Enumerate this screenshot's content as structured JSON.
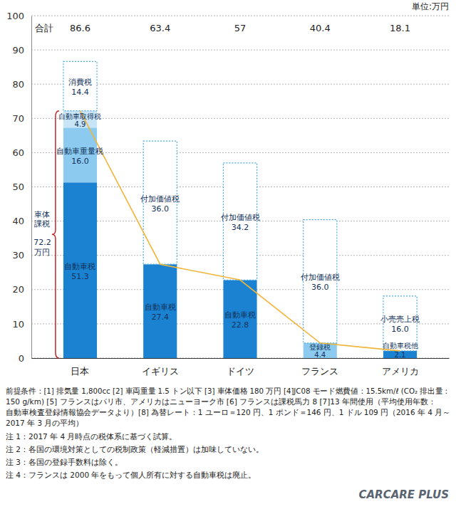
{
  "chart_data": {
    "type": "bar",
    "stacked": true,
    "data_labels": true,
    "grid": true,
    "categories": [
      "日本",
      "イギリス",
      "ドイツ",
      "フランス",
      "アメリカ"
    ],
    "ylim": [
      0,
      100
    ],
    "yticks": [
      0,
      10,
      20,
      30,
      40,
      50,
      60,
      70,
      80,
      90,
      100
    ],
    "series": [
      {
        "name": "自動車税",
        "color": "#1b82d2",
        "values": [
          51.3,
          27.4,
          22.8,
          null,
          null
        ],
        "value_labels": [
          "51.3",
          "27.4",
          "22.8",
          null,
          null
        ]
      },
      {
        "name": "登録税",
        "color": "#8ccbef",
        "values": [
          null,
          null,
          null,
          4.4,
          null
        ],
        "value_labels": [
          null,
          null,
          null,
          "4.4",
          null
        ]
      },
      {
        "name": "自動車税他",
        "color": "#1b82d2",
        "values": [
          null,
          null,
          null,
          null,
          2.1
        ],
        "value_labels": [
          null,
          null,
          null,
          null,
          "2.1"
        ]
      },
      {
        "name": "自動車重量税",
        "color": "#8ccbef",
        "values": [
          16.0,
          null,
          null,
          null,
          null
        ],
        "value_labels": [
          "16.0",
          null,
          null,
          null,
          null
        ]
      },
      {
        "name": "自動車取得税",
        "color": "#c8e5f8",
        "values": [
          4.9,
          null,
          null,
          null,
          null
        ],
        "value_labels": [
          "4.9",
          null,
          null,
          null,
          null
        ]
      },
      {
        "name": "消費税",
        "color": "#4aa8e0",
        "line_style": "dotted",
        "values": [
          14.4,
          null,
          null,
          null,
          null
        ],
        "value_labels": [
          "14.4",
          null,
          null,
          null,
          null
        ]
      },
      {
        "name": "付加価値税",
        "color": "#4aa8e0",
        "line_style": "dotted",
        "values": [
          null,
          36.0,
          34.2,
          36.0,
          null
        ],
        "value_labels": [
          null,
          "36.0",
          "34.2",
          "36.0",
          null
        ]
      },
      {
        "name": "小売売上税",
        "color": "#4aa8e0",
        "line_style": "dotted",
        "values": [
          null,
          null,
          null,
          null,
          16.0
        ],
        "value_labels": [
          null,
          null,
          null,
          null,
          "16.0"
        ]
      },
      {
        "name": "車体課税",
        "type": "line",
        "color": "#f2b53a",
        "values": [
          72.2,
          27.4,
          22.8,
          4.4,
          2.1
        ]
      }
    ],
    "totals_label": "合計",
    "totals": [
      86.6,
      63.4,
      57,
      40.4,
      18.1
    ],
    "annotations": {
      "unit": "単位:万円",
      "bracket_unit": "万円",
      "logo": "CARCARE PLUS"
    },
    "notes": [
      "前提条件：[1] 排気量 1,800cc [2] 車両重量 1.5 トン以下 [3] 車体価格 180 万円 [4]JC08 モード燃費値：15.5km/ℓ (CO₂ 排出量：",
      "150 g/km) [5] フランスはパリ市、アメリカはニューヨーク市 [6] フランスは課税馬力 8 [7]13 年間使用（平均使用年数：",
      "自動車検査登録情報協会データより）[8] 為替レート：1 ユーロ＝120 円、1 ポンド＝146 円、1 ドル 109 円（2016 年 4 月～",
      "2017 年 3 月の平均）",
      "注 1：2017 年 4 月時点の税体系に基づく試算。",
      "注 2：各国の環境対策としての税制政策（軽減措置）は加味していない。",
      "注 3：各国の登録手数料は除く。",
      "注 4：フランスは 2000 年をもって個人所有に対する自動車税は廃止。"
    ]
  }
}
